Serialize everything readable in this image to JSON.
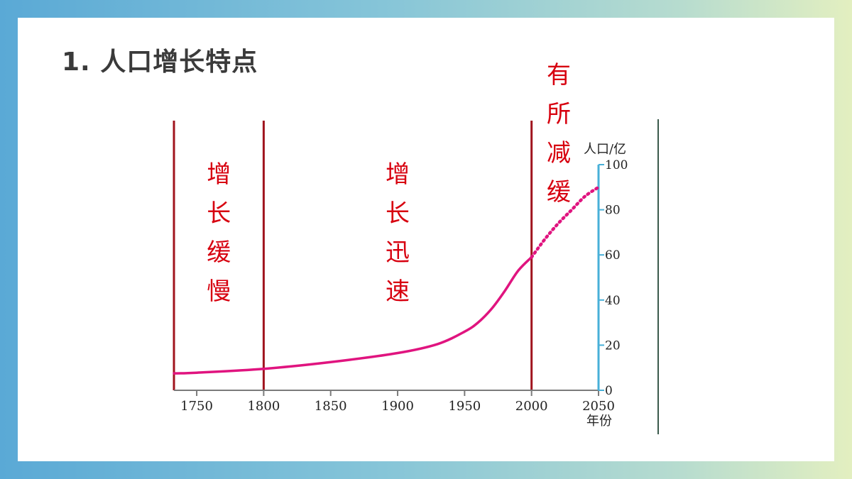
{
  "slide": {
    "title": "1. 人口增长特点"
  },
  "colors": {
    "curve": "#e0147f",
    "divider": "#a0141e",
    "axis": "#48b0d8",
    "phase_text": "#d7000f",
    "title": "#3a3a3a"
  },
  "chart_data": {
    "type": "line",
    "title": "",
    "xlabel": "年份",
    "ylabel": "人口/亿",
    "x_ticks": [
      "1750",
      "1800",
      "1850",
      "1900",
      "1950",
      "2000",
      "2050"
    ],
    "y_ticks": [
      "0",
      "20",
      "40",
      "60",
      "80",
      "100"
    ],
    "xlim": [
      1733,
      2050
    ],
    "ylim": [
      0,
      100
    ],
    "grid": false,
    "y_axis_side": "right",
    "series": [
      {
        "style": "solid",
        "points": [
          [
            1733,
            7.5
          ],
          [
            1750,
            7.8
          ],
          [
            1800,
            9.5
          ],
          [
            1850,
            12.5
          ],
          [
            1900,
            16.5
          ],
          [
            1930,
            20.5
          ],
          [
            1950,
            26
          ],
          [
            1960,
            30
          ],
          [
            1970,
            36
          ],
          [
            1980,
            44
          ],
          [
            1990,
            53
          ],
          [
            2000,
            59
          ]
        ]
      },
      {
        "style": "dotted",
        "points": [
          [
            2000,
            59
          ],
          [
            2010,
            67
          ],
          [
            2020,
            74
          ],
          [
            2030,
            80
          ],
          [
            2040,
            86
          ],
          [
            2050,
            90
          ]
        ]
      }
    ],
    "dividers": [
      1733,
      1800,
      2000
    ],
    "phases": [
      {
        "text": "增长缓慢",
        "x_from": 1733,
        "x_to": 1800
      },
      {
        "text": "增长迅速",
        "x_from": 1800,
        "x_to": 2000
      },
      {
        "text": "有所减缓",
        "x_from": 2000,
        "x_to": 2050
      }
    ]
  }
}
